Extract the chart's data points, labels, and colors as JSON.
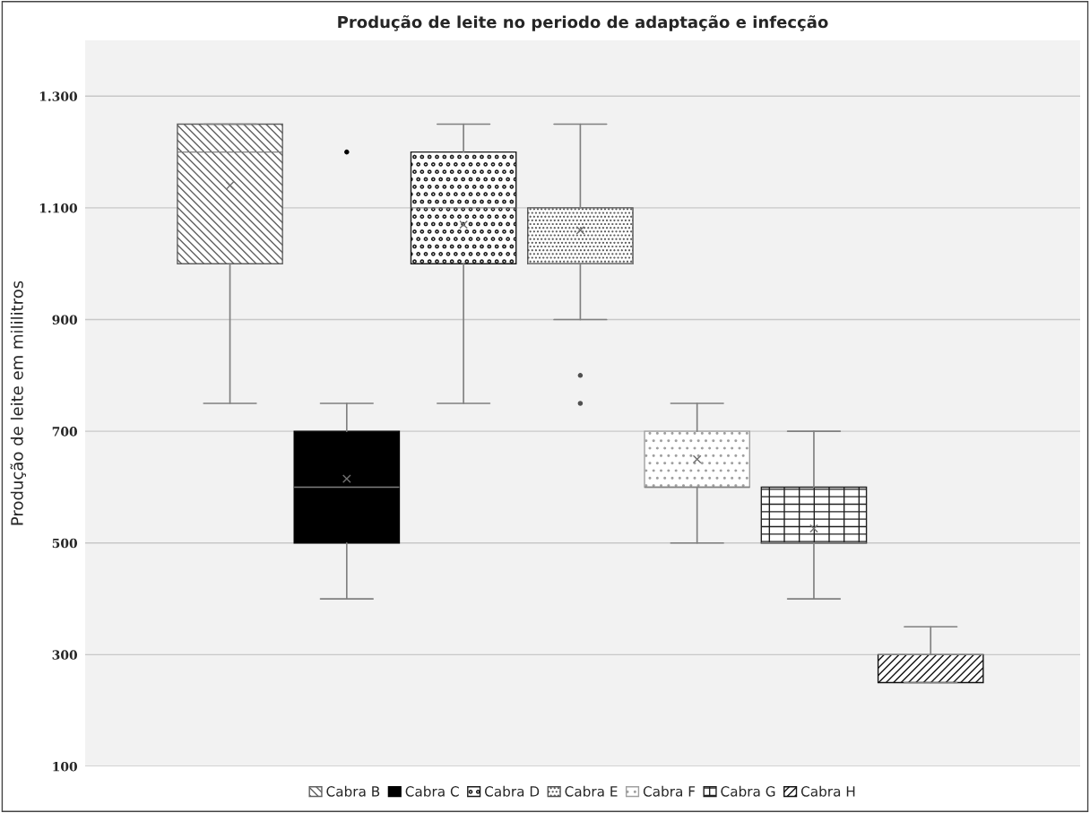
{
  "chart_data": {
    "type": "box",
    "title": "Produção de leite no periodo de adaptação e infecção",
    "ylabel": "Produção de leite em mililitros",
    "categories": [
      null
    ],
    "ylim": [
      100,
      1400
    ],
    "yticks": [
      100,
      300,
      500,
      700,
      900,
      {
        "value": 1100,
        "label": "1.100"
      },
      {
        "value": 1300,
        "label": "1.300"
      }
    ],
    "grid": "y",
    "legend": "bottom",
    "series": [
      {
        "name": "Cabra B",
        "color": "#606060",
        "boxes": [
          {
            "low": 750,
            "q1": 1000,
            "median": 1200,
            "q3": 1250,
            "high": 1250,
            "mean": 1140
          }
        ]
      },
      {
        "name": "Cabra C",
        "color": "#000000",
        "boxes": [
          {
            "low": 400,
            "q1": 500,
            "median": 600,
            "q3": 700,
            "high": 750,
            "mean": 615,
            "outliers": [
              1200
            ]
          }
        ]
      },
      {
        "name": "Cabra D",
        "color": "#1a1a1a",
        "boxes": [
          {
            "low": 750,
            "q1": 1000,
            "median": 1100,
            "q3": 1200,
            "high": 1250,
            "mean": 1070
          }
        ]
      },
      {
        "name": "Cabra E",
        "color": "#505050",
        "boxes": [
          {
            "low": 900,
            "q1": 1000,
            "median": 1000,
            "q3": 1100,
            "high": 1250,
            "mean": 1060,
            "outliers": [
              800,
              750
            ]
          }
        ]
      },
      {
        "name": "Cabra F",
        "color": "#a0a0a0",
        "boxes": [
          {
            "low": 500,
            "q1": 600,
            "median": 600,
            "q3": 700,
            "high": 750,
            "mean": 650
          }
        ]
      },
      {
        "name": "Cabra G",
        "color": "#202020",
        "boxes": [
          {
            "low": 400,
            "q1": 500,
            "median": 500,
            "q3": 600,
            "high": 700,
            "mean": 526
          }
        ]
      },
      {
        "name": "Cabra H",
        "color": "#111111",
        "boxes": [
          {
            "low": 250,
            "q1": 250,
            "median": 300,
            "q3": 300,
            "high": 350
          }
        ]
      }
    ]
  }
}
